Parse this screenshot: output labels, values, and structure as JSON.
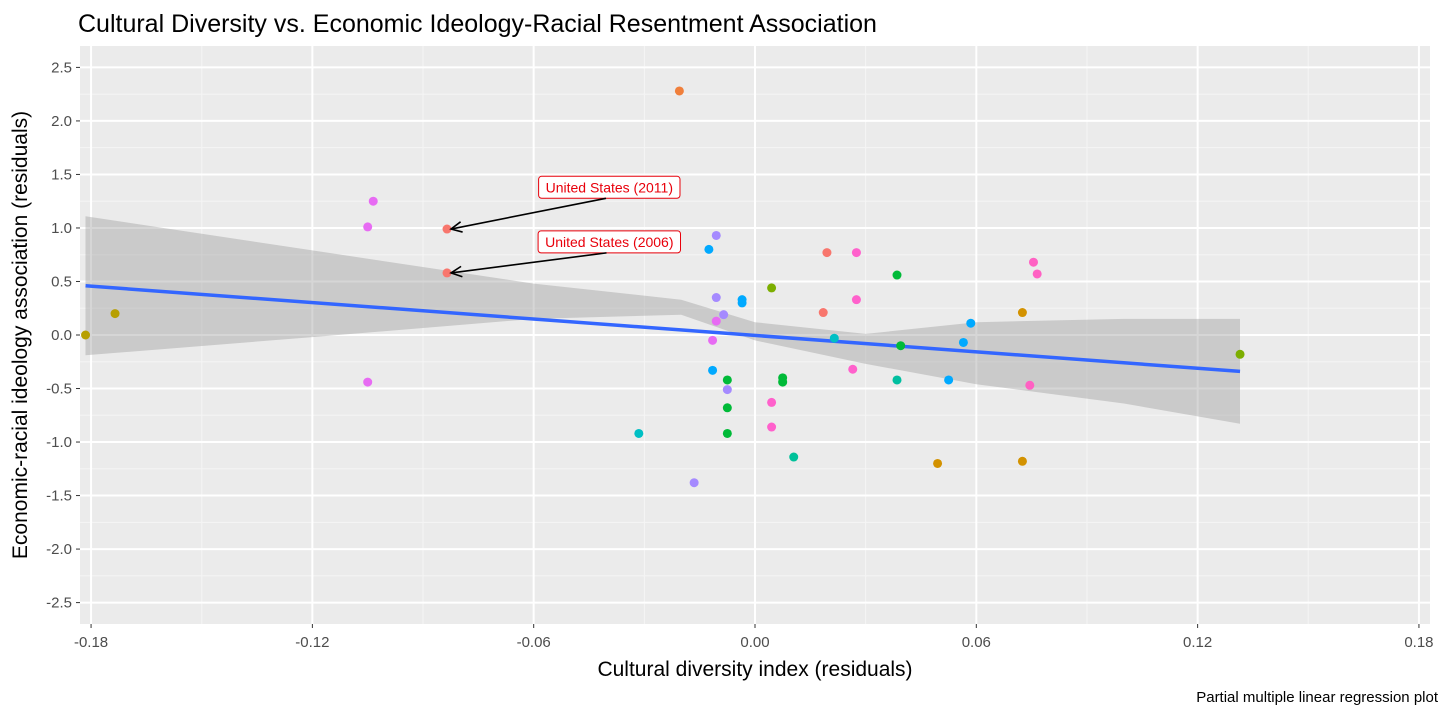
{
  "chart_data": {
    "type": "scatter",
    "title": "Cultural Diversity vs. Economic Ideology-Racial Resentment Association",
    "xlabel": "Cultural diversity index (residuals)",
    "ylabel": "Economic-racial ideology association (residuals)",
    "caption": "Partial multiple linear regression plot",
    "xlim": [
      -0.183,
      0.183
    ],
    "ylim": [
      -2.7,
      2.7
    ],
    "x_ticks": [
      -0.18,
      -0.12,
      -0.06,
      0.0,
      0.06,
      0.12,
      0.18
    ],
    "x_tick_labels": [
      "-0.18",
      "-0.12",
      "-0.06",
      "0.00",
      "0.06",
      "0.12",
      "0.18"
    ],
    "y_ticks": [
      2.5,
      2.0,
      1.5,
      1.0,
      0.5,
      0.0,
      -0.5,
      -1.0,
      -1.5,
      -2.0,
      -2.5
    ],
    "y_tick_labels": [
      "2.5",
      "2.0",
      "1.5",
      "1.0",
      "0.5",
      "0.0",
      "-0.5",
      "-1.0",
      "-1.5",
      "-2.0",
      "-2.5"
    ],
    "grid": true,
    "background": "#ebebeb",
    "regression": {
      "x_start": -0.1815,
      "y_start": 0.46,
      "x_end": 0.1315,
      "y_end": -0.34,
      "color": "#3366ff",
      "band": [
        {
          "x": -0.1815,
          "lo": -0.19,
          "hi": 1.11
        },
        {
          "x": -0.12,
          "lo": -0.02,
          "hi": 0.79
        },
        {
          "x": -0.06,
          "lo": 0.15,
          "hi": 0.48
        },
        {
          "x": -0.02,
          "lo": 0.19,
          "hi": 0.33
        },
        {
          "x": 0.0,
          "lo": -0.05,
          "hi": 0.12
        },
        {
          "x": 0.03,
          "lo": -0.27,
          "hi": 0.01
        },
        {
          "x": 0.06,
          "lo": -0.46,
          "hi": 0.12
        },
        {
          "x": 0.1,
          "lo": -0.64,
          "hi": 0.15
        },
        {
          "x": 0.1315,
          "lo": -0.83,
          "hi": 0.15
        }
      ]
    },
    "points": [
      {
        "x": -0.1815,
        "y": 0.0,
        "color": "#b79f00"
      },
      {
        "x": -0.1735,
        "y": 0.2,
        "color": "#b79f00"
      },
      {
        "x": -0.1035,
        "y": 1.25,
        "color": "#e76bf3"
      },
      {
        "x": -0.105,
        "y": 1.01,
        "color": "#e76bf3"
      },
      {
        "x": -0.105,
        "y": -0.44,
        "color": "#e76bf3"
      },
      {
        "x": -0.0835,
        "y": 0.99,
        "color": "#f8766d"
      },
      {
        "x": -0.0835,
        "y": 0.58,
        "color": "#f8766d"
      },
      {
        "x": -0.0205,
        "y": 2.28,
        "color": "#f07f3b"
      },
      {
        "x": -0.0315,
        "y": -0.92,
        "color": "#00bfc4"
      },
      {
        "x": -0.0165,
        "y": -1.38,
        "color": "#a58aff"
      },
      {
        "x": -0.0125,
        "y": 0.8,
        "color": "#00a9ff"
      },
      {
        "x": -0.0105,
        "y": 0.93,
        "color": "#a58aff"
      },
      {
        "x": -0.0105,
        "y": 0.35,
        "color": "#a58aff"
      },
      {
        "x": -0.0105,
        "y": 0.13,
        "color": "#e76bf3"
      },
      {
        "x": -0.0115,
        "y": -0.05,
        "color": "#e76bf3"
      },
      {
        "x": -0.0085,
        "y": 0.19,
        "color": "#a58aff"
      },
      {
        "x": -0.0075,
        "y": -0.51,
        "color": "#a58aff"
      },
      {
        "x": -0.0035,
        "y": 0.33,
        "color": "#00a9ff"
      },
      {
        "x": -0.0035,
        "y": 0.3,
        "color": "#00a9ff"
      },
      {
        "x": -0.0115,
        "y": -0.33,
        "color": "#00a9ff"
      },
      {
        "x": -0.0075,
        "y": -0.42,
        "color": "#00ba38"
      },
      {
        "x": -0.0075,
        "y": -0.68,
        "color": "#00ba38"
      },
      {
        "x": -0.0075,
        "y": -0.92,
        "color": "#00ba38"
      },
      {
        "x": 0.0045,
        "y": 0.44,
        "color": "#7cae00"
      },
      {
        "x": 0.0045,
        "y": -0.63,
        "color": "#ff61cc"
      },
      {
        "x": 0.0045,
        "y": -0.86,
        "color": "#ff61cc"
      },
      {
        "x": 0.0075,
        "y": -0.4,
        "color": "#00ba38"
      },
      {
        "x": 0.0075,
        "y": -0.44,
        "color": "#00ba38"
      },
      {
        "x": 0.0105,
        "y": -1.14,
        "color": "#00c19a"
      },
      {
        "x": 0.0185,
        "y": 0.21,
        "color": "#f8766d"
      },
      {
        "x": 0.0195,
        "y": 0.77,
        "color": "#f8766d"
      },
      {
        "x": 0.0215,
        "y": -0.03,
        "color": "#00bfc4"
      },
      {
        "x": 0.0275,
        "y": 0.77,
        "color": "#ff61cc"
      },
      {
        "x": 0.0275,
        "y": 0.33,
        "color": "#ff61cc"
      },
      {
        "x": 0.0265,
        "y": -0.32,
        "color": "#ff61cc"
      },
      {
        "x": 0.0385,
        "y": 0.56,
        "color": "#00ba38"
      },
      {
        "x": 0.0385,
        "y": -0.42,
        "color": "#00bfa0"
      },
      {
        "x": 0.0395,
        "y": -0.1,
        "color": "#00ba38"
      },
      {
        "x": 0.0495,
        "y": -1.2,
        "color": "#d39200"
      },
      {
        "x": 0.0525,
        "y": -0.42,
        "color": "#00a9ff"
      },
      {
        "x": 0.0565,
        "y": -0.07,
        "color": "#00a9ff"
      },
      {
        "x": 0.0585,
        "y": 0.11,
        "color": "#00a9ff"
      },
      {
        "x": 0.0725,
        "y": 0.21,
        "color": "#d39200"
      },
      {
        "x": 0.0725,
        "y": -1.18,
        "color": "#d39200"
      },
      {
        "x": 0.0755,
        "y": 0.68,
        "color": "#ff61c3"
      },
      {
        "x": 0.0765,
        "y": 0.57,
        "color": "#ff61c3"
      },
      {
        "x": 0.0745,
        "y": -0.47,
        "color": "#ff61c3"
      },
      {
        "x": 0.1315,
        "y": -0.18,
        "color": "#7cae00"
      }
    ],
    "annotations": [
      {
        "label": "United States (2011)",
        "x": -0.0835,
        "y": 0.99,
        "label_x": -0.0395,
        "label_y": 1.38,
        "color": "#e8000b"
      },
      {
        "label": "United States (2006)",
        "x": -0.0835,
        "y": 0.58,
        "label_x": -0.0395,
        "label_y": 0.87,
        "color": "#e8000b"
      }
    ]
  }
}
